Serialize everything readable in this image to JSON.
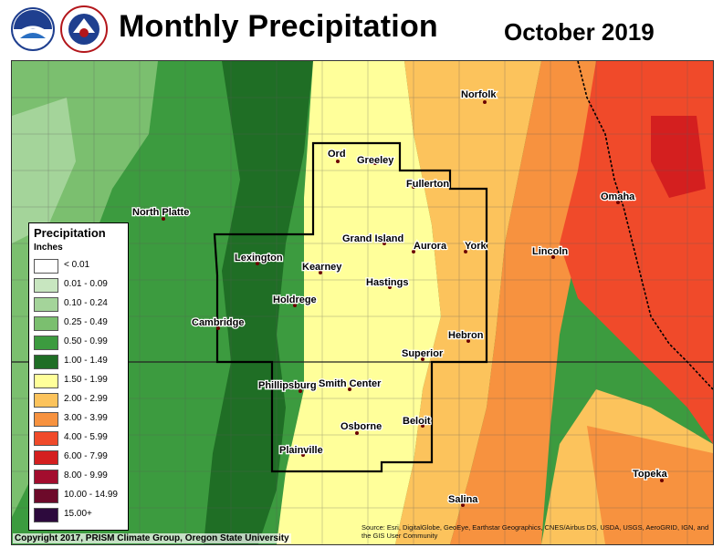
{
  "header": {
    "title": "Monthly Precipitation",
    "date": "October 2019",
    "logos": [
      "noaa-logo",
      "nws-logo"
    ]
  },
  "legend": {
    "title": "Precipitation",
    "units": "Inches",
    "items": [
      {
        "label": "< 0.01",
        "color": "#ffffff"
      },
      {
        "label": "0.01 - 0.09",
        "color": "#c8e6c0"
      },
      {
        "label": "0.10 - 0.24",
        "color": "#a4d49a"
      },
      {
        "label": "0.25 - 0.49",
        "color": "#7bbf6f"
      },
      {
        "label": "0.50 - 0.99",
        "color": "#3c9b3f"
      },
      {
        "label": "1.00 - 1.49",
        "color": "#1f6e25"
      },
      {
        "label": "1.50 - 1.99",
        "color": "#ffff9a"
      },
      {
        "label": "2.00 - 2.99",
        "color": "#fcc35c"
      },
      {
        "label": "3.00 - 3.99",
        "color": "#f7923f"
      },
      {
        "label": "4.00 - 5.99",
        "color": "#f04a2a"
      },
      {
        "label": "6.00 - 7.99",
        "color": "#d41f1f"
      },
      {
        "label": "8.00 - 9.99",
        "color": "#a30d2e"
      },
      {
        "label": "10.00 - 14.99",
        "color": "#6d0a2a"
      },
      {
        "label": "15.00+",
        "color": "#2d0a3d"
      }
    ]
  },
  "cities": [
    {
      "name": "Norfolk"
    },
    {
      "name": "Ord"
    },
    {
      "name": "Greeley"
    },
    {
      "name": "Fullerton"
    },
    {
      "name": "North Platte"
    },
    {
      "name": "Omaha"
    },
    {
      "name": "Grand Island"
    },
    {
      "name": "Aurora"
    },
    {
      "name": "York"
    },
    {
      "name": "Lincoln"
    },
    {
      "name": "Lexington"
    },
    {
      "name": "Kearney"
    },
    {
      "name": "Hastings"
    },
    {
      "name": "Holdrege"
    },
    {
      "name": "Cambridge"
    },
    {
      "name": "Hebron"
    },
    {
      "name": "Superior"
    },
    {
      "name": "Phillipsburg"
    },
    {
      "name": "Smith Center"
    },
    {
      "name": "Beloit"
    },
    {
      "name": "Osborne"
    },
    {
      "name": "Plainville"
    },
    {
      "name": "Topeka"
    },
    {
      "name": "Salina"
    }
  ],
  "footer": {
    "copyright": "Copyright 2017, PRISM Climate Group, Oregon State University",
    "source": "Source: Esri, DigitalGlobe, GeoEye, Earthstar Geographics, CNES/Airbus DS, USDA, USGS, AeroGRID, IGN, and the GIS User Community"
  }
}
